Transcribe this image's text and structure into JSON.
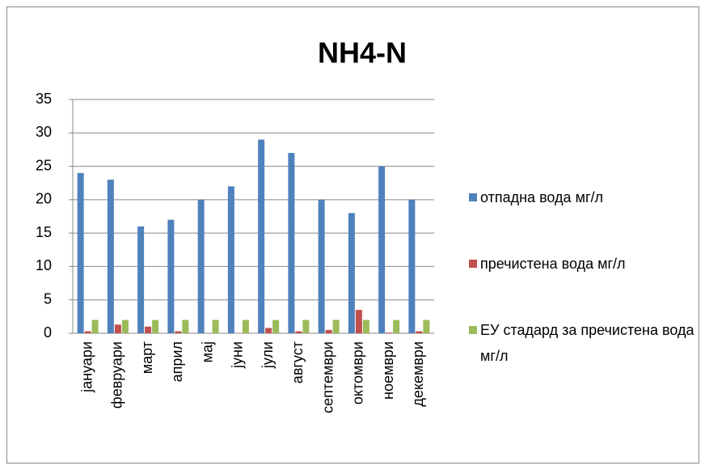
{
  "chart_data": {
    "type": "bar",
    "title": "NH4-N",
    "categories": [
      "јануари",
      "февруари",
      "март",
      "април",
      "мај",
      "јуни",
      "јули",
      "август",
      "септември",
      "октомври",
      "ноември",
      "декември"
    ],
    "series": [
      {
        "name": "отпадна вода мг/л",
        "color": "#4f81bd",
        "values": [
          24,
          23,
          16,
          17,
          20,
          22,
          29,
          27,
          20,
          18,
          25,
          20
        ]
      },
      {
        "name": "пречистена вода  мг/л",
        "color": "#c0504d",
        "values": [
          0.3,
          1.3,
          1.0,
          0.3,
          0,
          0,
          0.8,
          0.3,
          0.5,
          3.5,
          0.1,
          0.3
        ]
      },
      {
        "name": "ЕУ стадард за пречистена вода  мг/л",
        "color": "#9bbb59",
        "values": [
          2,
          2,
          2,
          2,
          2,
          2,
          2,
          2,
          2,
          2,
          2,
          2
        ]
      }
    ],
    "ylim": [
      0,
      35
    ],
    "yticks": [
      0,
      5,
      10,
      15,
      20,
      25,
      30,
      35
    ],
    "grid": true,
    "legend": "right"
  }
}
